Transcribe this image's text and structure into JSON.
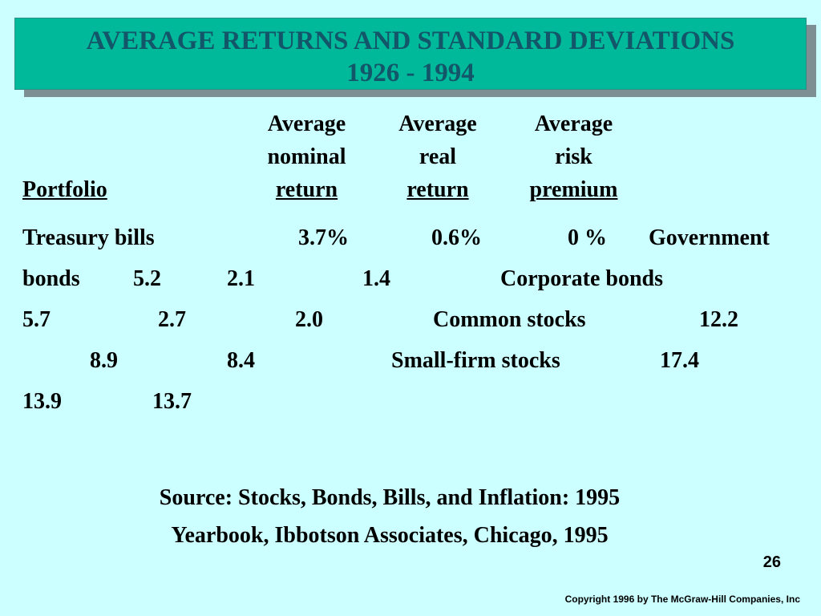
{
  "title": {
    "line1": "AVERAGE RETURNS AND STANDARD DEVIATIONS",
    "line2": "1926 - 1994"
  },
  "headers": {
    "portfolio": "Portfolio",
    "nominal": [
      "Average",
      "nominal",
      "return"
    ],
    "real": [
      "Average",
      "real",
      "return"
    ],
    "risk": [
      "Average",
      "risk",
      "premium"
    ]
  },
  "body_lines": [
    [
      "Treasury bills",
      "3.7%",
      "0.6%",
      "0 %",
      "Government"
    ],
    [
      "bonds",
      "5.2",
      "2.1",
      "1.4",
      "Corporate bonds"
    ],
    [
      "5.7",
      "2.7",
      "2.0",
      "Common stocks",
      "12.2"
    ],
    [
      "8.9",
      "8.4",
      "Small-firm stocks",
      "17.4"
    ],
    [
      "13.9",
      "13.7"
    ]
  ],
  "source": {
    "line1": "Source:  Stocks, Bonds, Bills, and Inflation: 1995",
    "line2": "Yearbook, Ibbotson Associates, Chicago, 1995"
  },
  "page_number": "26",
  "copyright": "Copyright 1996 by The McGraw-Hill Companies, Inc"
}
